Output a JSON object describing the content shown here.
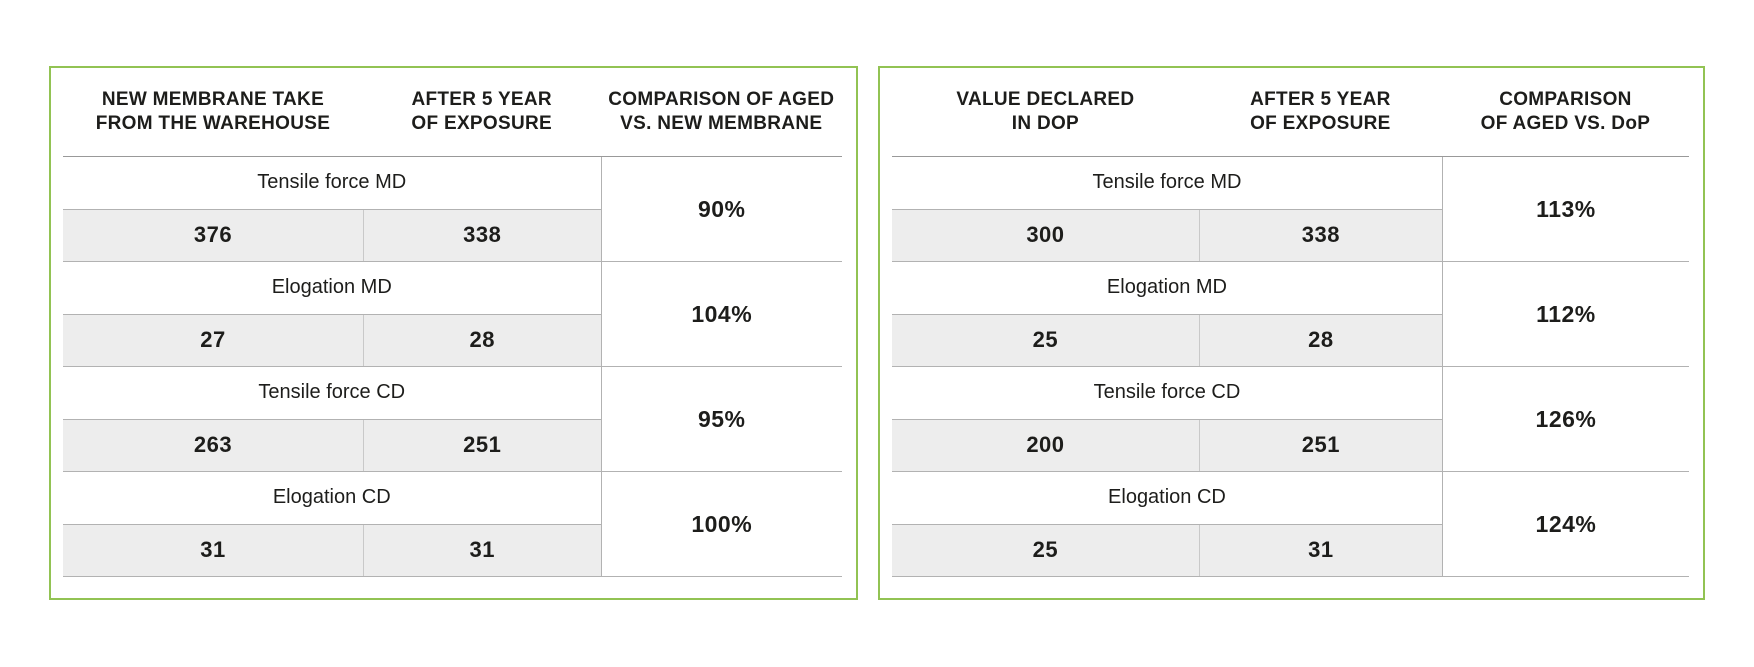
{
  "accent_border_color": "#92c353",
  "value_row_background": "#ededed",
  "ui": {
    "tables": [
      {
        "headers": [
          {
            "line1": "NEW MEMBRANE TAKE",
            "line2": "FROM THE WAREHOUSE"
          },
          {
            "line1": "AFTER 5 YEAR",
            "line2": "OF EXPOSURE"
          },
          {
            "line1": "COMPARISON OF AGED",
            "line2": "VS. NEW MEMBRANE"
          }
        ]
      },
      {
        "headers": [
          {
            "line1": "VALUE DECLARED",
            "line2": "IN DOP"
          },
          {
            "line1": "AFTER 5 YEAR",
            "line2": "OF EXPOSURE"
          },
          {
            "line1": "COMPARISON",
            "line2": "OF AGED VS. DoP"
          }
        ]
      }
    ]
  },
  "chart_data": [
    {
      "type": "table",
      "columns": [
        "NEW MEMBRANE TAKE FROM THE WAREHOUSE",
        "AFTER 5 YEAR OF EXPOSURE",
        "COMPARISON OF AGED VS. NEW MEMBRANE"
      ],
      "rows": [
        {
          "metric": "Tensile force MD",
          "new_value": 376,
          "aged_value": 338,
          "comparison": "90%"
        },
        {
          "metric": "Elogation MD",
          "new_value": 27,
          "aged_value": 28,
          "comparison": "104%"
        },
        {
          "metric": "Tensile force CD",
          "new_value": 263,
          "aged_value": 251,
          "comparison": "95%"
        },
        {
          "metric": "Elogation CD",
          "new_value": 31,
          "aged_value": 31,
          "comparison": "100%"
        }
      ]
    },
    {
      "type": "table",
      "columns": [
        "VALUE DECLARED IN DOP",
        "AFTER 5 YEAR OF EXPOSURE",
        "COMPARISON OF AGED VS. DoP"
      ],
      "rows": [
        {
          "metric": "Tensile force MD",
          "new_value": 300,
          "aged_value": 338,
          "comparison": "113%"
        },
        {
          "metric": "Elogation MD",
          "new_value": 25,
          "aged_value": 28,
          "comparison": "112%"
        },
        {
          "metric": "Tensile force CD",
          "new_value": 200,
          "aged_value": 251,
          "comparison": "126%"
        },
        {
          "metric": "Elogation CD",
          "new_value": 25,
          "aged_value": 31,
          "comparison": "124%"
        }
      ]
    }
  ]
}
